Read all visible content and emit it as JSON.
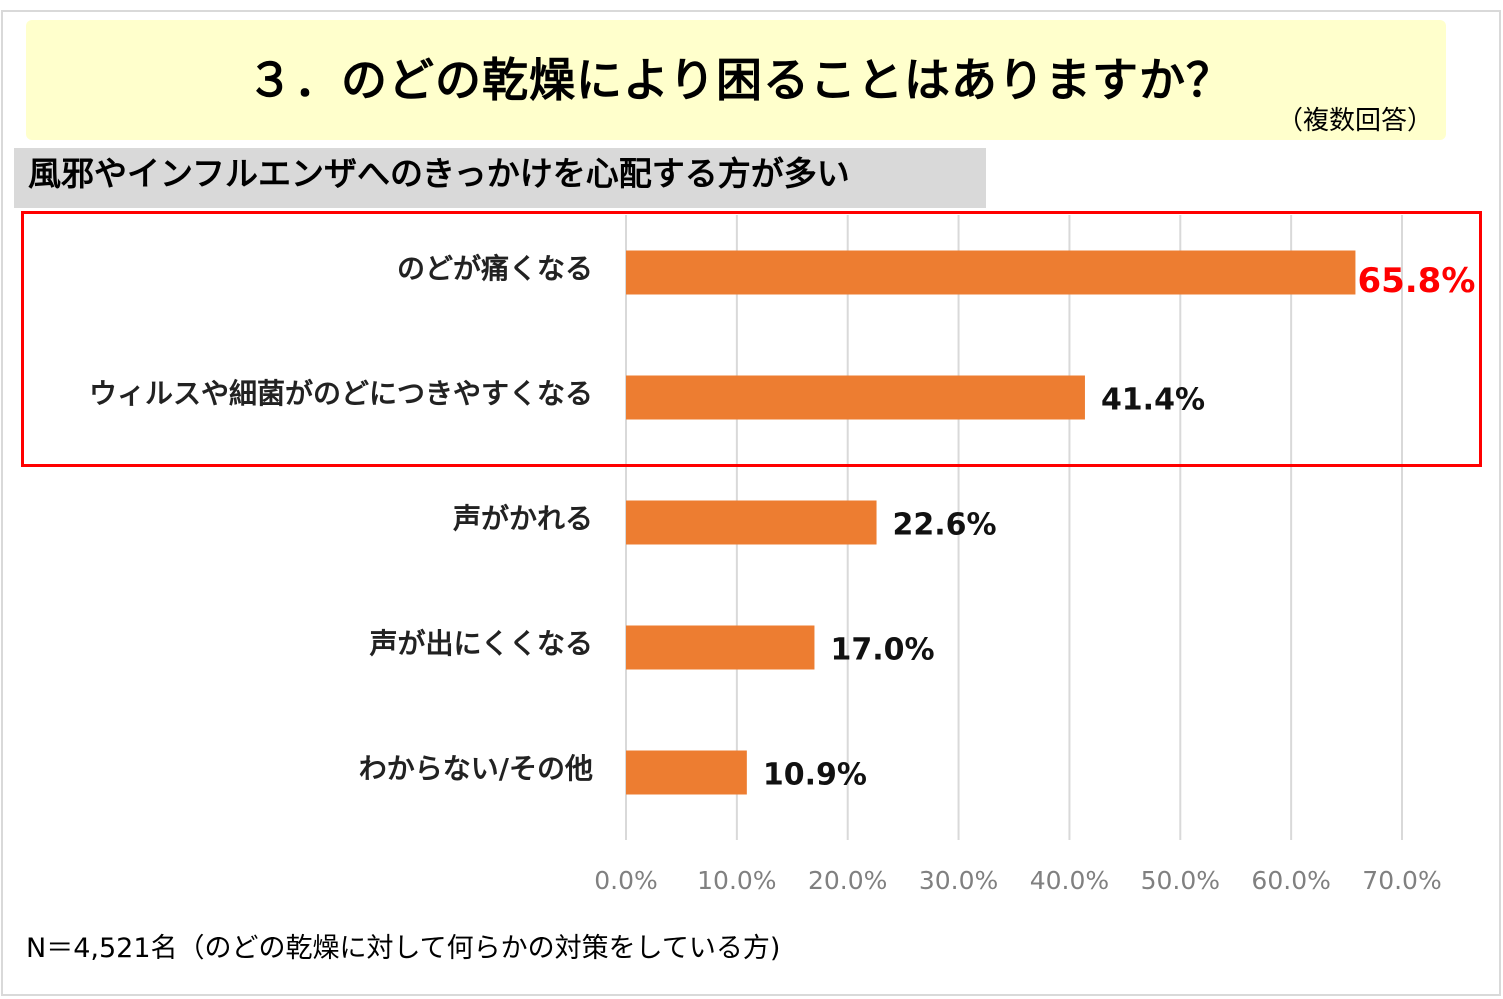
{
  "header": {
    "title": "３．のどの乾燥により困ることはありますか？",
    "note": "（複数回答）",
    "headline": "風邪やインフルエンザへのきっかけを心配する方が多い"
  },
  "footer": {
    "sample": "N＝4,521名（のどの乾燥に対して何らかの対策をしている方)"
  },
  "colors": {
    "bar": "#ed7d31",
    "highlight_text": "#ff0000",
    "highlight_box": "#ff0000",
    "banner": "#ffffcc",
    "headline_bg": "#d9d9d9",
    "grid": "#d9d9d9"
  },
  "chart_data": {
    "type": "bar",
    "orientation": "horizontal",
    "categories": [
      "のどが痛くなる",
      "ウィルスや細菌がのどにつきやすくなる",
      "声がかれる",
      "声が出にくくなる",
      "わからない/その他"
    ],
    "values": [
      65.8,
      41.4,
      22.6,
      17.0,
      10.9
    ],
    "value_labels": [
      "65.8%",
      "41.4%",
      "22.6%",
      "17.0%",
      "10.9%"
    ],
    "highlighted": [
      0,
      1
    ],
    "xlim": [
      0,
      70
    ],
    "x_ticks": [
      "0.0%",
      "10.0%",
      "20.0%",
      "30.0%",
      "40.0%",
      "50.0%",
      "60.0%",
      "70.0%"
    ],
    "grid": "vertical",
    "legend": "none"
  }
}
